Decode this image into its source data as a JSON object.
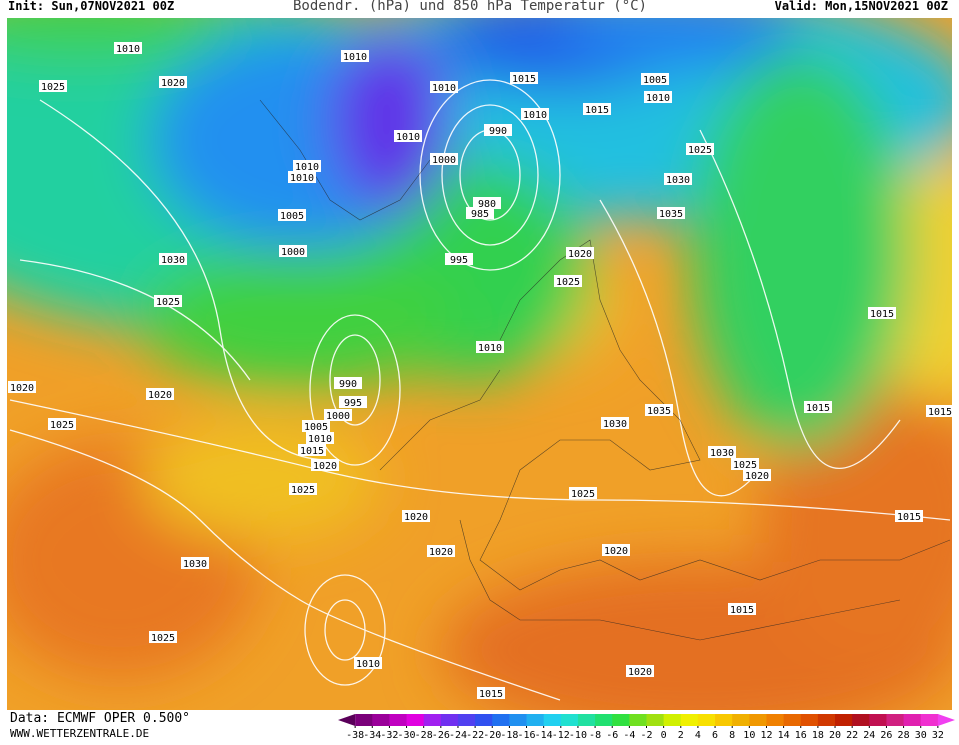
{
  "header": {
    "init": "Init: Sun,07NOV2021 00Z",
    "title": "Bodendr. (hPa) und 850 hPa Temperatur (°C)",
    "valid": "Valid: Mon,15NOV2021 00Z"
  },
  "footer": {
    "data": "Data: ECMWF OPER 0.500°",
    "site": "WWW.WETTERZENTRALE.DE"
  },
  "isobar_labels": [
    1010,
    1010,
    1020,
    1025,
    1010,
    1015,
    1010,
    1005,
    1010,
    1015,
    990,
    1010,
    1000,
    1025,
    1010,
    1010,
    1030,
    1005,
    980,
    985,
    1035,
    1000,
    995,
    1030,
    1020,
    1025,
    1025,
    1015,
    1010,
    990,
    1020,
    1020,
    995,
    1000,
    1005,
    1010,
    1015,
    1025,
    1035,
    1030,
    1015,
    1015,
    1020,
    1030,
    1025,
    1020,
    1025,
    1025,
    1020,
    1015,
    1020,
    1020,
    1030,
    1015,
    1025,
    1010,
    1020,
    1015
  ],
  "colorbar": {
    "ticks": [
      -38,
      -34,
      -32,
      -30,
      -28,
      -26,
      -24,
      -22,
      -20,
      -18,
      -16,
      -14,
      -12,
      -10,
      -8,
      -6,
      -4,
      -2,
      0,
      2,
      4,
      6,
      8,
      10,
      12,
      14,
      16,
      18,
      20,
      22,
      24,
      26,
      28,
      30,
      32
    ],
    "colors": [
      "#5a005a",
      "#7a007a",
      "#9a009a",
      "#c000c0",
      "#e000e0",
      "#a020f0",
      "#7030f0",
      "#5040f0",
      "#3050f0",
      "#2070f0",
      "#2090f0",
      "#20b0f0",
      "#20d0f0",
      "#20e0d0",
      "#20e0a0",
      "#20e070",
      "#30e040",
      "#70e020",
      "#a0e010",
      "#d0f000",
      "#f0f000",
      "#f8e000",
      "#f8c800",
      "#f0b000",
      "#f09800",
      "#f08000",
      "#e86800",
      "#e05000",
      "#d03800",
      "#c02000",
      "#b01020",
      "#c01050",
      "#d02080",
      "#e020b0",
      "#f030d0",
      "#f040f0"
    ]
  }
}
